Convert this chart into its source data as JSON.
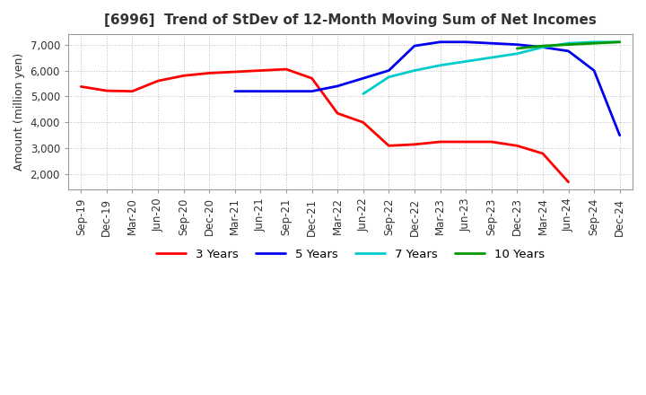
{
  "title": "[6996]  Trend of StDev of 12-Month Moving Sum of Net Incomes",
  "ylabel": "Amount (million yen)",
  "ylim": [
    1400,
    7400
  ],
  "yticks": [
    2000,
    3000,
    4000,
    5000,
    6000,
    7000
  ],
  "background_color": "#FFFFFF",
  "grid_color": "#AAAAAA",
  "x_labels": [
    "Sep-19",
    "Dec-19",
    "Mar-20",
    "Jun-20",
    "Sep-20",
    "Dec-20",
    "Mar-21",
    "Jun-21",
    "Sep-21",
    "Dec-21",
    "Mar-22",
    "Jun-22",
    "Sep-22",
    "Dec-22",
    "Mar-23",
    "Jun-23",
    "Sep-23",
    "Dec-23",
    "Mar-24",
    "Jun-24",
    "Sep-24",
    "Dec-24"
  ],
  "series": {
    "3 Years": {
      "color": "#FF0000",
      "values": [
        5380,
        5220,
        5200,
        5600,
        5800,
        5900,
        5950,
        6000,
        6050,
        5700,
        4350,
        4000,
        3100,
        3150,
        3250,
        3250,
        3250,
        3100,
        2800,
        1700,
        null,
        null
      ]
    },
    "5 Years": {
      "color": "#0000EE",
      "values": [
        null,
        null,
        null,
        null,
        null,
        null,
        5200,
        5200,
        5200,
        5200,
        5400,
        5700,
        6000,
        6950,
        7100,
        7100,
        7050,
        7000,
        6900,
        6750,
        6000,
        3500
      ]
    },
    "7 Years": {
      "color": "#00CCCC",
      "values": [
        null,
        null,
        null,
        null,
        null,
        null,
        null,
        null,
        null,
        null,
        null,
        5100,
        5750,
        6000,
        6200,
        6350,
        6500,
        6650,
        6900,
        7050,
        7100,
        7100
      ]
    },
    "10 Years": {
      "color": "#009900",
      "values": [
        null,
        null,
        null,
        null,
        null,
        null,
        null,
        null,
        null,
        null,
        null,
        null,
        null,
        null,
        null,
        null,
        null,
        6850,
        6950,
        7000,
        7050,
        7100
      ]
    }
  },
  "legend_order": [
    "3 Years",
    "5 Years",
    "7 Years",
    "10 Years"
  ]
}
